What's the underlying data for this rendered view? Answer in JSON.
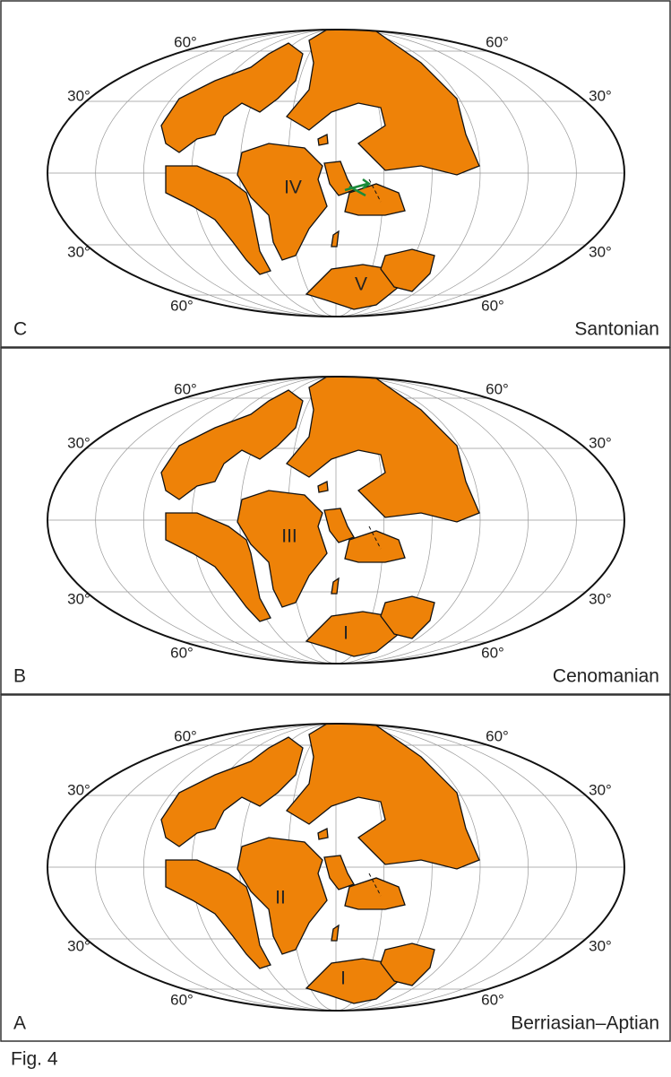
{
  "panels": [
    {
      "letter": "C",
      "name": "Santonian",
      "lat_labels": [
        "60°",
        "60°",
        "30°",
        "30°",
        "30°",
        "30°",
        "60°",
        "60°"
      ],
      "plate_labels": [
        "IV",
        "V"
      ]
    },
    {
      "letter": "B",
      "name": "Cenomanian",
      "lat_labels": [
        "60°",
        "60°",
        "30°",
        "30°",
        "30°",
        "30°",
        "60°",
        "60°"
      ],
      "plate_labels": [
        "III",
        "I"
      ]
    },
    {
      "letter": "A",
      "name": "Berriasian–Aptian",
      "lat_labels": [
        "60°",
        "60°",
        "30°",
        "30°",
        "30°",
        "30°",
        "60°",
        "60°"
      ],
      "plate_labels": [
        "II",
        "I"
      ]
    }
  ],
  "caption": "Fig. 4"
}
